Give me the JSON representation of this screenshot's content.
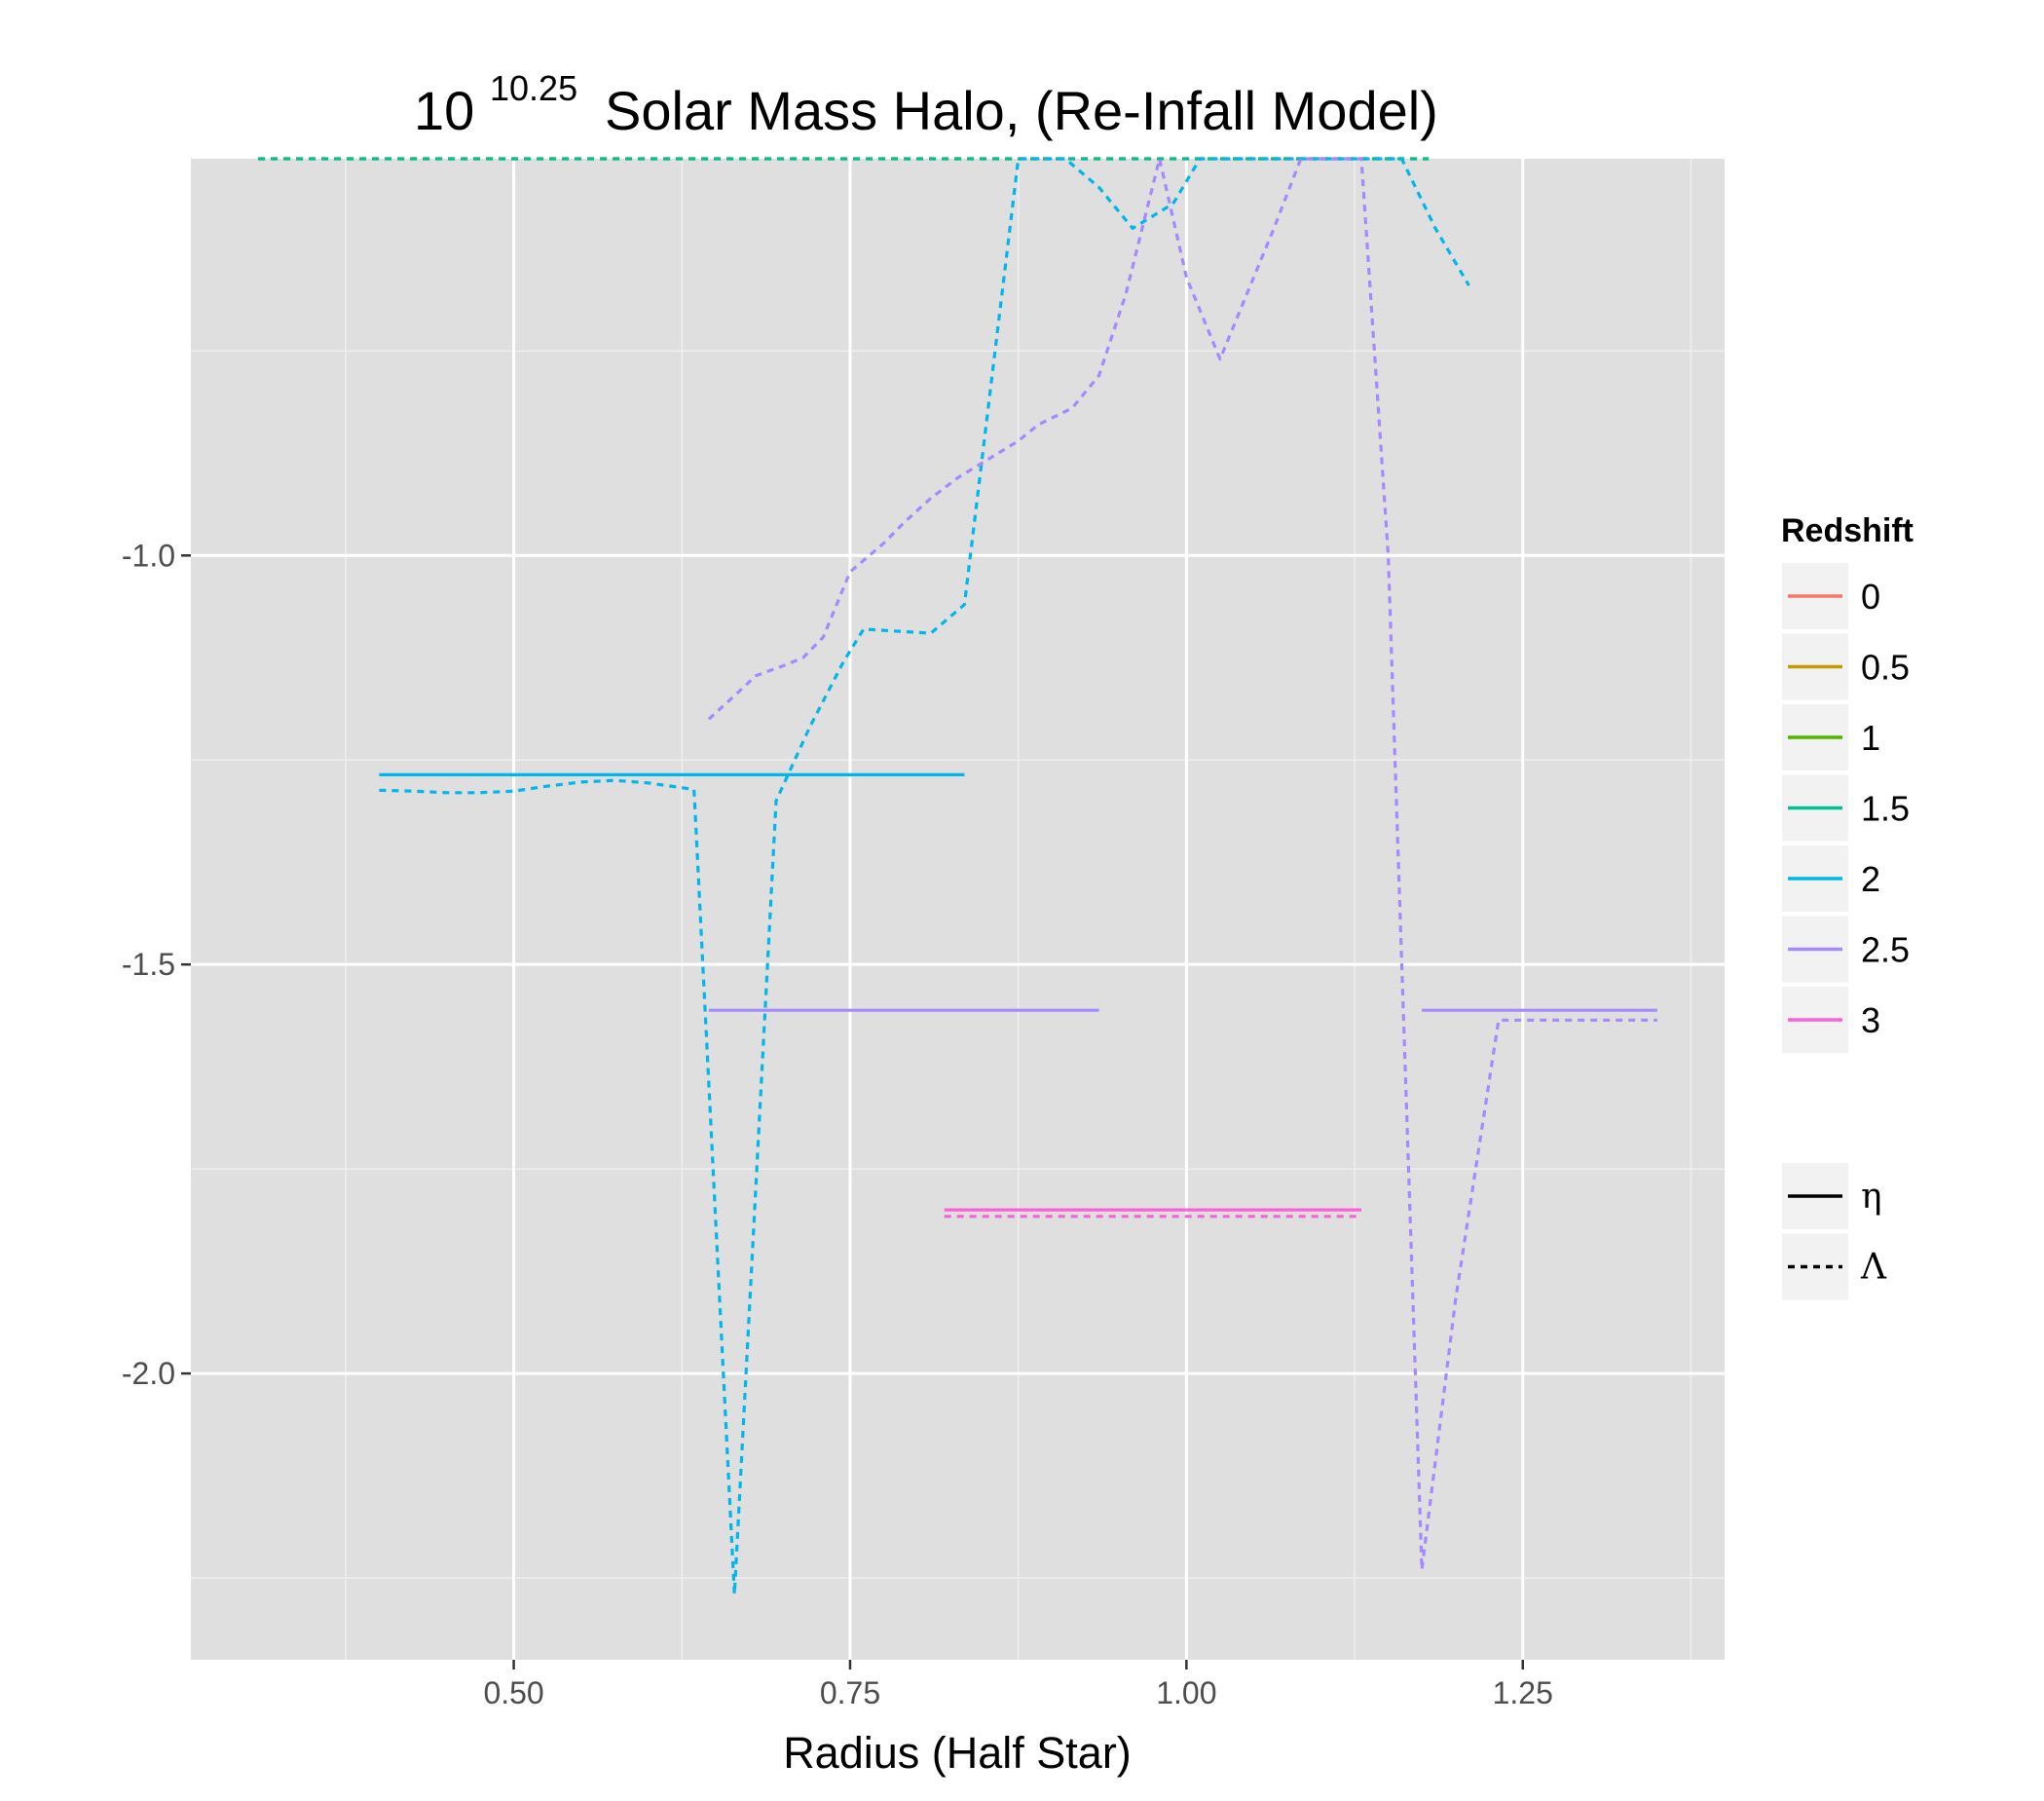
{
  "chart_data": {
    "type": "line",
    "title": {
      "base": "10",
      "exponent": "10.25",
      "rest": "Solar Mass Halo, (Re-Infall Model)"
    },
    "xlabel": "Radius (Half Star)",
    "ylabel": "",
    "xlim": [
      0.26,
      1.4
    ],
    "ylim": [
      -2.35,
      -0.515
    ],
    "x_ticks": [
      0.5,
      0.75,
      1.0,
      1.25
    ],
    "x_tick_labels": [
      "0.50",
      "0.75",
      "1.00",
      "1.25"
    ],
    "y_ticks": [
      -2.0,
      -1.5,
      -1.0
    ],
    "y_tick_labels": [
      "-2.0",
      "-1.5",
      "-1.0"
    ],
    "grid": true,
    "legend_placement": "right",
    "colors": {
      "panel_bg": "#dfdfdf",
      "grid_major": "#ffffff",
      "grid_minor": "#efefef",
      "tick_text": "#4d4d4d"
    },
    "legend_color": {
      "title": "Redshift",
      "entries": [
        {
          "label": "0",
          "color": "#F8766D"
        },
        {
          "label": "0.5",
          "color": "#C49A00"
        },
        {
          "label": "1",
          "color": "#53B400"
        },
        {
          "label": "1.5",
          "color": "#00C094"
        },
        {
          "label": "2",
          "color": "#00B6EB"
        },
        {
          "label": "2.5",
          "color": "#A58AFF"
        },
        {
          "label": "3",
          "color": "#FB61D7"
        }
      ]
    },
    "legend_linetype": {
      "entries": [
        {
          "label": "η",
          "dash": "solid"
        },
        {
          "label": "Λ",
          "dash": "dashed"
        }
      ]
    },
    "series": [
      {
        "redshift": "0.5",
        "color": "#C49A00",
        "dash": "dashed",
        "x": [
          0.31,
          1.18
        ],
        "y": [
          -0.515,
          -0.515
        ]
      },
      {
        "redshift": "1.5",
        "color": "#00C094",
        "dash": "dashed",
        "x": [
          0.31,
          1.18
        ],
        "y": [
          -0.515,
          -0.515
        ]
      },
      {
        "redshift": "2",
        "color": "#00B6EB",
        "dash": "solid",
        "x": [
          0.4,
          0.835
        ],
        "y": [
          -1.268,
          -1.268
        ]
      },
      {
        "redshift": "2",
        "color": "#00B6EB",
        "dash": "dashed",
        "x": [
          0.4,
          0.425,
          0.45,
          0.475,
          0.5,
          0.525,
          0.55,
          0.575,
          0.6,
          0.634,
          0.664,
          0.695,
          0.72,
          0.745,
          0.76,
          0.78,
          0.81,
          0.835,
          0.875,
          0.91,
          0.935,
          0.96,
          0.99,
          1.01,
          1.04,
          1.07,
          1.1,
          1.13,
          1.16,
          1.185,
          1.21
        ],
        "y": [
          -1.287,
          -1.288,
          -1.29,
          -1.29,
          -1.288,
          -1.282,
          -1.277,
          -1.275,
          -1.278,
          -1.286,
          -2.27,
          -1.3,
          -1.21,
          -1.13,
          -1.09,
          -1.092,
          -1.095,
          -1.06,
          -0.515,
          -0.515,
          -0.55,
          -0.6,
          -0.57,
          -0.515,
          -0.515,
          -0.515,
          -0.515,
          -0.515,
          -0.515,
          -0.6,
          -0.67
        ]
      },
      {
        "redshift": "2.5",
        "color": "#A58AFF",
        "dash": "solid",
        "x": [
          0.645,
          0.935
        ],
        "y": [
          -1.556,
          -1.556
        ]
      },
      {
        "redshift": "2.5",
        "color": "#A58AFF",
        "dash": "dashed",
        "x": [
          0.645,
          0.665,
          0.68,
          0.7,
          0.715,
          0.73,
          0.75,
          0.775,
          0.79,
          0.81,
          0.83,
          0.855,
          0.875,
          0.89,
          0.915,
          0.935,
          0.955,
          0.98,
          1.0,
          1.025,
          1.045,
          1.065,
          1.085,
          1.13,
          1.15,
          1.175,
          1.2,
          1.232,
          1.35
        ],
        "y": [
          -1.2,
          -1.17,
          -1.147,
          -1.135,
          -1.125,
          -1.1,
          -1.02,
          -0.985,
          -0.96,
          -0.93,
          -0.905,
          -0.88,
          -0.86,
          -0.84,
          -0.82,
          -0.78,
          -0.68,
          -0.515,
          -0.66,
          -0.76,
          -0.68,
          -0.6,
          -0.515,
          -0.515,
          -1.0,
          -2.24,
          -1.91,
          -1.568,
          -1.568
        ]
      },
      {
        "redshift": "2.5",
        "color": "#A58AFF",
        "dash": "solid",
        "x": [
          1.175,
          1.35
        ],
        "y": [
          -1.556,
          -1.556
        ]
      },
      {
        "redshift": "3",
        "color": "#FB61D7",
        "dash": "solid",
        "x": [
          0.82,
          1.13
        ],
        "y": [
          -1.8,
          -1.8
        ]
      },
      {
        "redshift": "3",
        "color": "#FB61D7",
        "dash": "dashed",
        "x": [
          0.82,
          1.13
        ],
        "y": [
          -1.808,
          -1.808
        ]
      }
    ]
  }
}
